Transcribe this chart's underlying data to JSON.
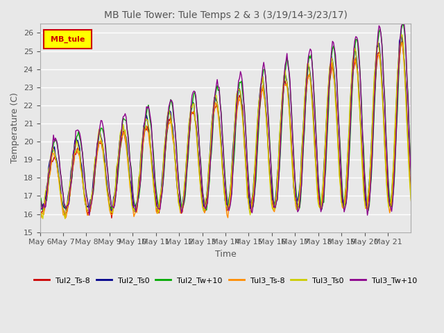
{
  "title": "MB Tule Tower: Tule Temps 2 & 3 (3/19/14-3/23/17)",
  "xlabel": "Time",
  "ylabel": "Temperature (C)",
  "ylim": [
    15.0,
    26.5
  ],
  "yticks": [
    15.0,
    16.0,
    17.0,
    18.0,
    19.0,
    20.0,
    21.0,
    22.0,
    23.0,
    24.0,
    25.0,
    26.0
  ],
  "background_color": "#e8e8e8",
  "plot_bg_color": "#e8e8e8",
  "grid_color": "#ffffff",
  "legend_labels": [
    "Tul2_Ts-8",
    "Tul2_Ts0",
    "Tul2_Tw+10",
    "Tul3_Ts-8",
    "Tul3_Ts0",
    "Tul3_Tw+10"
  ],
  "legend_colors": [
    "#cc0000",
    "#00008b",
    "#00aa00",
    "#ff8c00",
    "#cccc00",
    "#8b008b"
  ],
  "inset_label": "MB_tule",
  "inset_bg": "#ffff00",
  "inset_border": "#cc0000",
  "num_days": 16,
  "day_labels": [
    "May 6",
    "May 7",
    "May 8",
    "May 9",
    "May 10",
    "May 11",
    "May 12",
    "May 13",
    "May 14",
    "May 15",
    "May 16",
    "May 17",
    "May 18",
    "May 19",
    "May 20",
    "May 21"
  ]
}
